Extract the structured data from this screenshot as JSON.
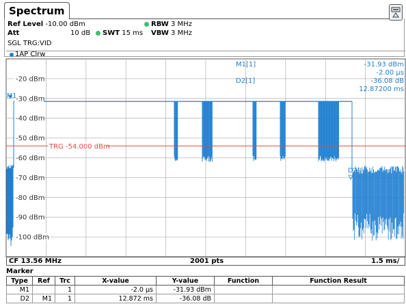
{
  "tab": {
    "title": "Spectrum"
  },
  "settings": {
    "ref_level_label": "Ref Level",
    "ref_level_value": "-10.00 dBm",
    "att_label": "Att",
    "att_value": "10 dB",
    "swt_label": "SWT",
    "swt_value": "15 ms",
    "rbw_label": "RBW",
    "rbw_value": "3 MHz",
    "vbw_label": "VBW",
    "vbw_value": "3 MHz",
    "trigger": "SGL TRG:VID"
  },
  "trace": {
    "label": "1AP Clrw",
    "color": "#1f7fd1"
  },
  "markers_readout": {
    "m1_name": "M1[1]",
    "m1_level": "-31.93 dBm",
    "m1_time": "-2.00 µs",
    "d2_name": "D2[1]",
    "d2_level": "-36.08 dB",
    "d2_time": "12.87200 ms"
  },
  "plot": {
    "y_ticks": [
      "-20 dBm",
      "-30 dBm",
      "-40 dBm",
      "-50 dBm",
      "-60 dBm",
      "-70 dBm",
      "-80 dBm",
      "-90 dBm",
      "-100 dBm"
    ],
    "trigger_line_label": "TRG -54.000 dBm",
    "trigger_color": "#e8483b",
    "m1_label": "M1",
    "d2_label": "D2",
    "grid_color": "#b9b9b9"
  },
  "status": {
    "cf": "CF 13.56 MHz",
    "pts": "2001 pts",
    "div": "1.5 ms/"
  },
  "marker_table": {
    "title": "Marker",
    "headers": [
      "Type",
      "Ref",
      "Trc",
      "X-value",
      "Y-value",
      "Function",
      "Function Result"
    ],
    "rows": [
      [
        "M1",
        "",
        "1",
        "-2.0 µs",
        "-31.93 dBm",
        "",
        ""
      ],
      [
        "D2",
        "M1",
        "1",
        "12.872 ms",
        "-36.08 dB",
        "",
        ""
      ]
    ]
  }
}
